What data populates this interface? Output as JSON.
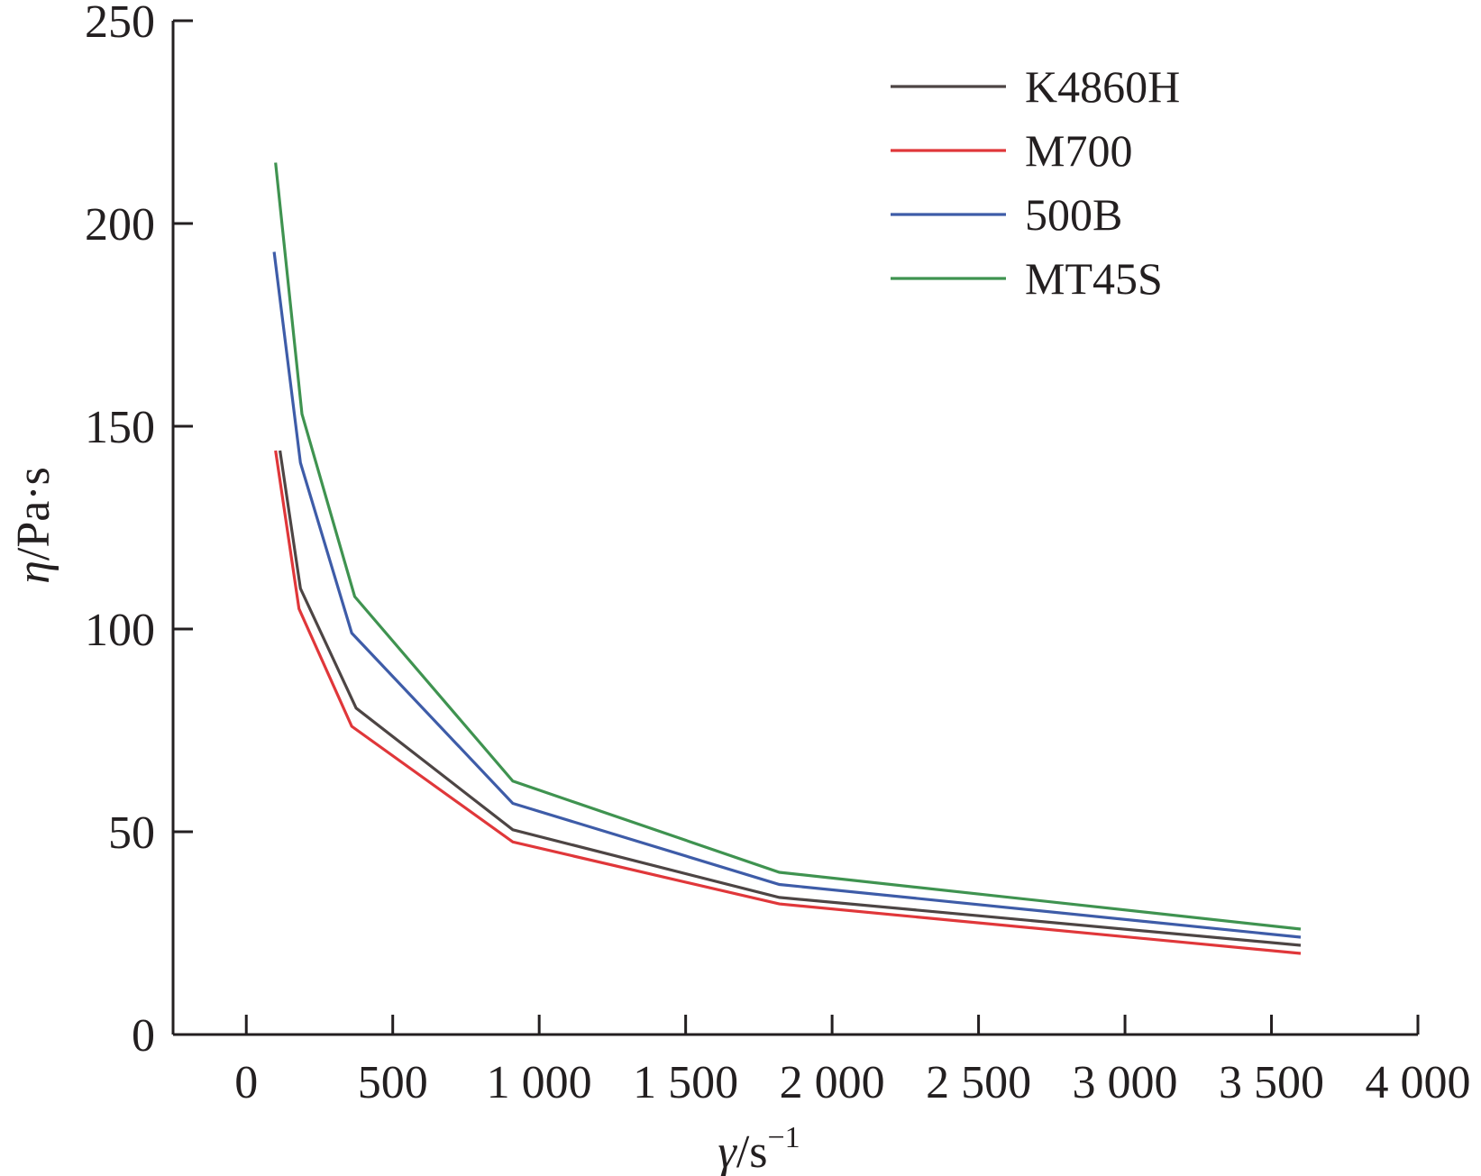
{
  "chart_data": {
    "type": "line",
    "xlabel": {
      "symbol": "γ",
      "unit": "/s",
      "sup": "−1"
    },
    "ylabel": {
      "symbol": "η",
      "unit": "/Pa·s"
    },
    "xlim": [
      -250,
      4000
    ],
    "ylim": [
      0,
      250
    ],
    "xticks": [
      0,
      500,
      1000,
      1500,
      2000,
      2500,
      3000,
      3500,
      4000
    ],
    "xtick_labels": [
      "0",
      "500",
      "1 000",
      "1 500",
      "2 000",
      "2 500",
      "3 000",
      "3 500",
      "4 000"
    ],
    "yticks": [
      0,
      50,
      100,
      150,
      200,
      250
    ],
    "ytick_labels": [
      "0",
      "50",
      "100",
      "150",
      "200",
      "250"
    ],
    "grid": false,
    "legend_position": "top-right",
    "series": [
      {
        "name": "K4860H",
        "color": "#4d4544",
        "x": [
          115,
          185,
          375,
          910,
          1820,
          3600
        ],
        "y": [
          144,
          110,
          80.5,
          50.5,
          33.8,
          22
        ]
      },
      {
        "name": "M700",
        "color": "#e0373a",
        "x": [
          100,
          180,
          360,
          910,
          1820,
          3600
        ],
        "y": [
          144,
          105,
          76,
          47.5,
          32.2,
          20
        ]
      },
      {
        "name": "500B",
        "color": "#3e5ca8",
        "x": [
          95,
          185,
          360,
          910,
          1820,
          3600
        ],
        "y": [
          193,
          141,
          99,
          57,
          37,
          24
        ]
      },
      {
        "name": "MT45S",
        "color": "#3f9350",
        "x": [
          100,
          190,
          370,
          910,
          1820,
          3600
        ],
        "y": [
          215,
          153,
          108,
          62.5,
          40,
          26
        ]
      }
    ]
  }
}
